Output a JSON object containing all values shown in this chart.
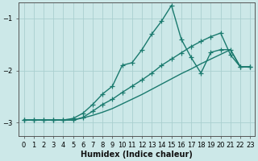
{
  "xlabel": "Humidex (Indice chaleur)",
  "background_color": "#cce8e8",
  "grid_color": "#aacfcf",
  "line_color": "#1a7a6e",
  "x_values": [
    0,
    1,
    2,
    3,
    4,
    5,
    6,
    7,
    8,
    9,
    10,
    11,
    12,
    13,
    14,
    15,
    16,
    17,
    18,
    19,
    20,
    21,
    22,
    23
  ],
  "curve1": [
    -2.95,
    -2.95,
    -2.95,
    -2.95,
    -2.95,
    -2.92,
    -2.82,
    -2.65,
    -2.45,
    -2.3,
    -1.9,
    -1.85,
    -1.6,
    -1.3,
    -1.05,
    -0.75,
    -1.4,
    -1.75,
    -2.05,
    -1.65,
    -1.6,
    -1.6,
    -1.93,
    -1.93
  ],
  "curve2": [
    -2.95,
    -2.95,
    -2.95,
    -2.95,
    -2.95,
    -2.95,
    -2.9,
    -2.78,
    -2.65,
    -2.55,
    -2.42,
    -2.3,
    -2.18,
    -2.05,
    -1.9,
    -1.78,
    -1.66,
    -1.54,
    -1.44,
    -1.35,
    -1.28,
    -1.7,
    -1.93,
    -1.93
  ],
  "curve3": [
    -2.95,
    -2.95,
    -2.95,
    -2.95,
    -2.95,
    -2.95,
    -2.91,
    -2.86,
    -2.8,
    -2.73,
    -2.64,
    -2.55,
    -2.46,
    -2.36,
    -2.26,
    -2.16,
    -2.06,
    -1.97,
    -1.87,
    -1.78,
    -1.69,
    -1.6,
    -1.93,
    -1.93
  ],
  "ylim": [
    -3.25,
    -0.7
  ],
  "yticks": [
    -3,
    -2,
    -1
  ],
  "xlim": [
    -0.5,
    23.5
  ],
  "marker": "+",
  "markersize": 4,
  "linewidth": 1.0,
  "xlabel_fontsize": 7,
  "tick_fontsize": 6,
  "figsize": [
    3.2,
    2.0
  ],
  "dpi": 100
}
